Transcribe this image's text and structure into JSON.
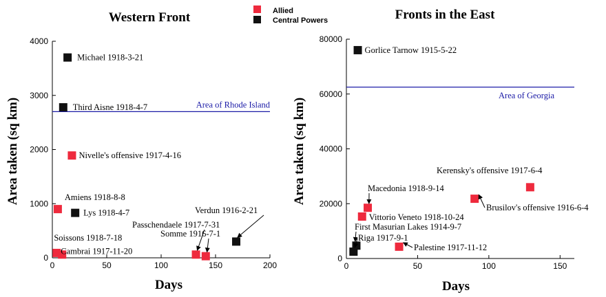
{
  "legend": {
    "placement": "top-center",
    "items": [
      {
        "label": "Allied",
        "color": "#ee2a3d"
      },
      {
        "label": "Central Powers",
        "color": "#111111"
      }
    ]
  },
  "chart_data": [
    {
      "type": "scatter",
      "title": "Western Front",
      "xlabel": "Days",
      "ylabel": "Area taken (sq km)",
      "xlim": [
        0,
        200
      ],
      "ylim": [
        0,
        4000
      ],
      "xticks": [
        0,
        50,
        100,
        150,
        200
      ],
      "yticks": [
        0,
        1000,
        2000,
        3000,
        4000
      ],
      "reference_line": {
        "y": 2700,
        "label": "Area of Rhode Island",
        "color": "#1a1aa6"
      },
      "points": [
        {
          "label": "Michael 1918-3-21",
          "x": 14,
          "y": 3700,
          "side": "Central Powers"
        },
        {
          "label": "Third Aisne 1918-4-7",
          "x": 10,
          "y": 2780,
          "side": "Central Powers"
        },
        {
          "label": "Nivelle's offensive 1917-4-16",
          "x": 18,
          "y": 1890,
          "side": "Allied"
        },
        {
          "label": "Amiens 1918-8-8",
          "x": 5,
          "y": 900,
          "side": "Allied"
        },
        {
          "label": "Lys 1918-4-7",
          "x": 21,
          "y": 830,
          "side": "Central Powers"
        },
        {
          "label": "Soissons 1918-7-18",
          "x": 4,
          "y": 90,
          "side": "Allied"
        },
        {
          "label": "Cambrai 1917-11-20",
          "x": 9,
          "y": 60,
          "side": "Allied"
        },
        {
          "label": "Passchendaele 1917-7-31",
          "x": 132,
          "y": 60,
          "side": "Allied"
        },
        {
          "label": "Somme 1916-7-1",
          "x": 141,
          "y": 30,
          "side": "Allied"
        },
        {
          "label": "Verdun 1916-2-21",
          "x": 169,
          "y": 300,
          "side": "Central Powers"
        }
      ]
    },
    {
      "type": "scatter",
      "title": "Fronts in the East",
      "xlabel": "Days",
      "ylabel": "Area taken (sq km)",
      "xlim": [
        0,
        160
      ],
      "ylim": [
        0,
        80000
      ],
      "xticks": [
        0,
        50,
        100,
        150
      ],
      "yticks": [
        0,
        20000,
        40000,
        60000,
        80000
      ],
      "reference_line": {
        "y": 62500,
        "label": "Area of Georgia",
        "color": "#1a1aa6"
      },
      "points": [
        {
          "label": "Gorlice Tarnow 1915-5-22",
          "x": 8,
          "y": 76000,
          "side": "Central Powers"
        },
        {
          "label": "Kerensky's offensive 1917-6-4",
          "x": 129,
          "y": 26000,
          "side": "Allied"
        },
        {
          "label": "Brusilov's offensive 1916-6-4",
          "x": 90,
          "y": 21800,
          "side": "Allied"
        },
        {
          "label": "Macedonia 1918-9-14",
          "x": 15,
          "y": 18500,
          "side": "Allied"
        },
        {
          "label": "Vittorio Veneto 1918-10-24",
          "x": 11,
          "y": 15300,
          "side": "Allied"
        },
        {
          "label": "First Masurian Lakes 1914-9-7",
          "x": 7,
          "y": 4700,
          "side": "Central Powers"
        },
        {
          "label": "Riga 1917-9-1",
          "x": 5,
          "y": 2500,
          "side": "Central Powers"
        },
        {
          "label": "Palestine 1917-11-12",
          "x": 37,
          "y": 4300,
          "side": "Allied"
        }
      ]
    }
  ]
}
